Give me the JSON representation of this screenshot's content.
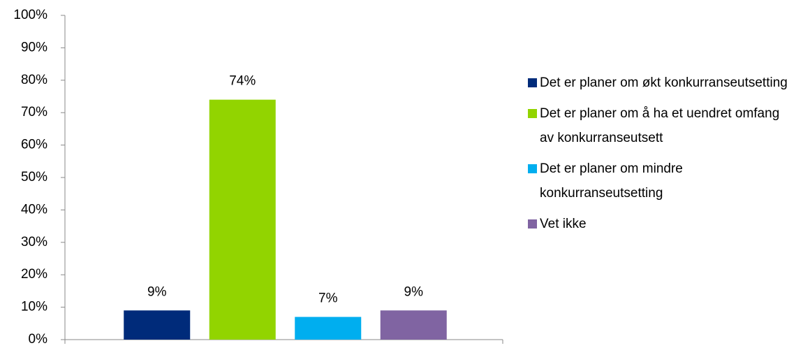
{
  "chart_data": {
    "type": "bar",
    "series": [
      {
        "name": "Det er planer om økt konkurranseutsetting",
        "color": "#002b7a",
        "values": [
          9
        ],
        "value_labels": [
          "9%"
        ]
      },
      {
        "name": "Det er planer om å ha et uendret omfang av konkurranseutsett",
        "color": "#92d400",
        "values": [
          74
        ],
        "value_labels": [
          "74%"
        ]
      },
      {
        "name": "Det er planer om mindre konkurranseutsetting",
        "color": "#00aeef",
        "values": [
          7
        ],
        "value_labels": [
          "7%"
        ]
      },
      {
        "name": "Vet ikke",
        "color": "#8064a2",
        "values": [
          9
        ],
        "value_labels": [
          "9%"
        ]
      }
    ],
    "ylim": [
      0,
      100
    ],
    "yticks": [
      {
        "value": 0,
        "label": "0%"
      },
      {
        "value": 10,
        "label": "10%"
      },
      {
        "value": 20,
        "label": "20%"
      },
      {
        "value": 30,
        "label": "30%"
      },
      {
        "value": 40,
        "label": "40%"
      },
      {
        "value": 50,
        "label": "50%"
      },
      {
        "value": 60,
        "label": "60%"
      },
      {
        "value": 70,
        "label": "70%"
      },
      {
        "value": 80,
        "label": "80%"
      },
      {
        "value": 90,
        "label": "90%"
      },
      {
        "value": 100,
        "label": "100%"
      }
    ],
    "legend": "right"
  }
}
